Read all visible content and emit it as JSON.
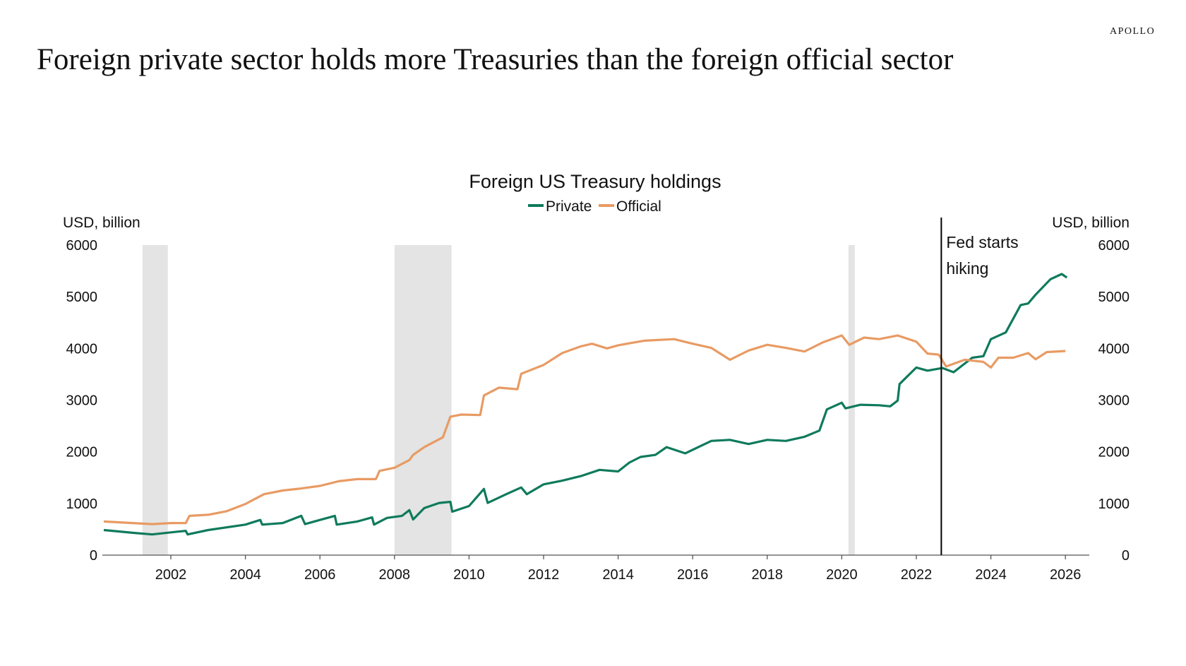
{
  "header": {
    "title": "Foreign private sector holds more Treasuries than the foreign official sector",
    "brand": "APOLLO"
  },
  "chart_data": {
    "type": "line",
    "title": "Foreign US Treasury holdings",
    "ylabel_left": "USD, billion",
    "ylabel_right": "USD, billion",
    "ylim": [
      0,
      6000
    ],
    "yticks": [
      0,
      1000,
      2000,
      3000,
      4000,
      5000,
      6000
    ],
    "xlim": [
      2000.2,
      2026.6
    ],
    "xticks": [
      2002,
      2004,
      2006,
      2008,
      2010,
      2012,
      2014,
      2016,
      2018,
      2020,
      2022,
      2024,
      2026
    ],
    "grid": false,
    "legend": "top-center",
    "recessions": [
      [
        2001.24,
        2001.92
      ],
      [
        2008.0,
        2009.53
      ],
      [
        2020.18,
        2020.35
      ]
    ],
    "annotation": {
      "x": 2022.67,
      "text_line1": "Fed starts",
      "text_line2": "hiking"
    },
    "series": [
      {
        "name": "Private",
        "color": "#0f7a5c",
        "x": [
          2000.2,
          2001.0,
          2001.5,
          2002.0,
          2002.4,
          2002.45,
          2003.0,
          2004.0,
          2004.4,
          2004.45,
          2005.0,
          2005.5,
          2005.6,
          2006.0,
          2006.4,
          2006.45,
          2007.0,
          2007.4,
          2007.45,
          2007.8,
          2008.2,
          2008.4,
          2008.5,
          2008.8,
          2009.2,
          2009.5,
          2009.55,
          2010.0,
          2010.4,
          2010.5,
          2011.0,
          2011.4,
          2011.55,
          2012.0,
          2012.5,
          2013.0,
          2013.5,
          2014.0,
          2014.3,
          2014.6,
          2015.0,
          2015.3,
          2015.8,
          2016.5,
          2017.0,
          2017.5,
          2018.0,
          2018.5,
          2019.0,
          2019.4,
          2019.6,
          2020.0,
          2020.1,
          2020.5,
          2021.0,
          2021.3,
          2021.5,
          2021.55,
          2022.0,
          2022.3,
          2022.7,
          2023.0,
          2023.5,
          2023.8,
          2024.0,
          2024.4,
          2024.8,
          2025.0,
          2025.2,
          2025.6,
          2025.9,
          2026.04
        ],
        "values": [
          485,
          430,
          400,
          440,
          470,
          400,
          485,
          590,
          680,
          590,
          620,
          760,
          600,
          680,
          760,
          590,
          650,
          730,
          590,
          720,
          760,
          870,
          690,
          910,
          1010,
          1030,
          840,
          950,
          1280,
          1010,
          1180,
          1310,
          1180,
          1370,
          1440,
          1530,
          1650,
          1620,
          1790,
          1900,
          1940,
          2090,
          1970,
          2210,
          2230,
          2150,
          2230,
          2210,
          2290,
          2410,
          2820,
          2950,
          2840,
          2910,
          2900,
          2880,
          2990,
          3310,
          3630,
          3570,
          3620,
          3540,
          3820,
          3850,
          4180,
          4310,
          4840,
          4870,
          5040,
          5340,
          5440,
          5370
        ]
      },
      {
        "name": "Official",
        "color": "#e89b64",
        "x": [
          2000.2,
          2001.5,
          2002.0,
          2002.4,
          2002.5,
          2003.0,
          2003.5,
          2004.0,
          2004.5,
          2005.0,
          2005.5,
          2006.0,
          2006.5,
          2007.0,
          2007.5,
          2007.6,
          2008.0,
          2008.4,
          2008.5,
          2008.8,
          2009.3,
          2009.5,
          2009.8,
          2010.3,
          2010.4,
          2010.8,
          2011.3,
          2011.4,
          2012.0,
          2012.5,
          2013.0,
          2013.3,
          2013.7,
          2014.0,
          2014.7,
          2015.5,
          2016.0,
          2016.5,
          2017.0,
          2017.5,
          2018.0,
          2018.5,
          2019.0,
          2019.5,
          2020.0,
          2020.2,
          2020.6,
          2021.0,
          2021.5,
          2022.0,
          2022.3,
          2022.6,
          2022.8,
          2023.3,
          2023.8,
          2024.0,
          2024.2,
          2024.6,
          2025.0,
          2025.2,
          2025.5,
          2026.0
        ],
        "values": [
          650,
          600,
          620,
          620,
          760,
          780,
          850,
          990,
          1180,
          1250,
          1290,
          1340,
          1430,
          1470,
          1470,
          1630,
          1690,
          1840,
          1940,
          2090,
          2280,
          2680,
          2720,
          2710,
          3090,
          3240,
          3210,
          3510,
          3680,
          3910,
          4040,
          4090,
          4000,
          4060,
          4150,
          4180,
          4090,
          4010,
          3780,
          3960,
          4070,
          4010,
          3940,
          4120,
          4250,
          4070,
          4210,
          4180,
          4250,
          4130,
          3900,
          3880,
          3650,
          3780,
          3740,
          3630,
          3820,
          3820,
          3910,
          3790,
          3930,
          3950
        ]
      }
    ]
  }
}
